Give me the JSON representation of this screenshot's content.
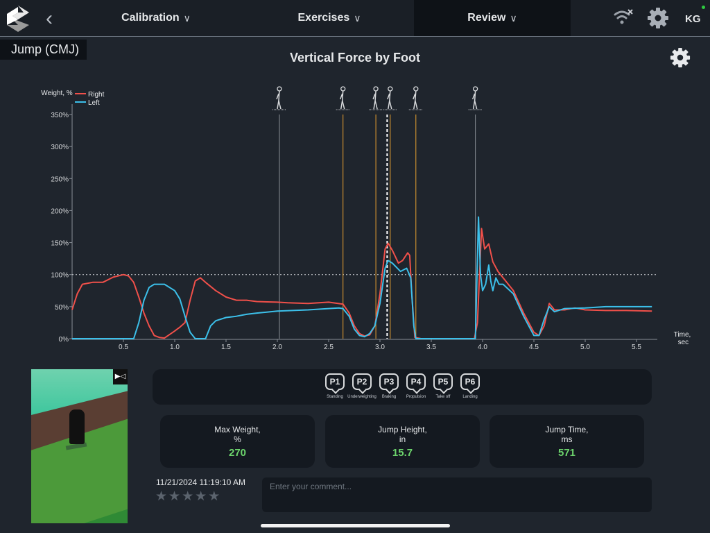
{
  "header": {
    "tabs": [
      {
        "label": "Calibration"
      },
      {
        "label": "Exercises"
      },
      {
        "label": "Review",
        "active": true
      }
    ],
    "user_initials": "KG",
    "icons": [
      "logo",
      "back-chevron",
      "wifi-off-icon",
      "settings-gear-icon"
    ]
  },
  "exercise_label": "Jump (CMJ)",
  "chart_title": "Vertical Force by Foot",
  "chart_data": {
    "type": "line",
    "title": "Vertical Force by Foot",
    "ylabel": "Weight, %",
    "xlabel": "Time, sec",
    "ylim": [
      0,
      350
    ],
    "xlim": [
      0,
      5.7
    ],
    "yticks": [
      "0%",
      "50%",
      "100%",
      "150%",
      "200%",
      "250%",
      "300%",
      "350%"
    ],
    "xticks": [
      "0.5",
      "1.0",
      "1.5",
      "2.0",
      "2.5",
      "3.0",
      "3.5",
      "4.0",
      "4.5",
      "5.0",
      "5.5"
    ],
    "reference_line": 100,
    "legend_placement": "top-left",
    "series": [
      {
        "name": "Right",
        "color": "#f0504a",
        "points": [
          [
            0,
            45
          ],
          [
            0.05,
            70
          ],
          [
            0.1,
            85
          ],
          [
            0.2,
            88
          ],
          [
            0.3,
            88
          ],
          [
            0.4,
            96
          ],
          [
            0.5,
            100
          ],
          [
            0.55,
            98
          ],
          [
            0.6,
            88
          ],
          [
            0.65,
            65
          ],
          [
            0.7,
            40
          ],
          [
            0.75,
            20
          ],
          [
            0.8,
            5
          ],
          [
            0.85,
            2
          ],
          [
            0.9,
            1
          ],
          [
            1.0,
            12
          ],
          [
            1.05,
            18
          ],
          [
            1.1,
            25
          ],
          [
            1.15,
            60
          ],
          [
            1.2,
            90
          ],
          [
            1.25,
            95
          ],
          [
            1.3,
            88
          ],
          [
            1.4,
            75
          ],
          [
            1.5,
            65
          ],
          [
            1.6,
            60
          ],
          [
            1.7,
            60
          ],
          [
            1.8,
            58
          ],
          [
            2.0,
            57
          ],
          [
            2.1,
            56
          ],
          [
            2.3,
            55
          ],
          [
            2.5,
            57
          ],
          [
            2.64,
            54
          ],
          [
            2.7,
            40
          ],
          [
            2.75,
            20
          ],
          [
            2.8,
            8
          ],
          [
            2.85,
            4
          ],
          [
            2.9,
            6
          ],
          [
            2.95,
            20
          ],
          [
            3.0,
            70
          ],
          [
            3.05,
            140
          ],
          [
            3.08,
            149
          ],
          [
            3.12,
            138
          ],
          [
            3.18,
            118
          ],
          [
            3.22,
            122
          ],
          [
            3.27,
            134
          ],
          [
            3.29,
            130
          ],
          [
            3.31,
            70
          ],
          [
            3.34,
            2
          ],
          [
            3.4,
            0
          ],
          [
            3.92,
            0
          ],
          [
            3.95,
            25
          ],
          [
            3.97,
            100
          ],
          [
            3.99,
            172
          ],
          [
            4.02,
            140
          ],
          [
            4.06,
            148
          ],
          [
            4.1,
            120
          ],
          [
            4.15,
            105
          ],
          [
            4.2,
            95
          ],
          [
            4.3,
            75
          ],
          [
            4.4,
            40
          ],
          [
            4.5,
            10
          ],
          [
            4.55,
            5
          ],
          [
            4.6,
            20
          ],
          [
            4.65,
            55
          ],
          [
            4.7,
            45
          ],
          [
            4.8,
            45
          ],
          [
            4.9,
            48
          ],
          [
            5.0,
            45
          ],
          [
            5.2,
            44
          ],
          [
            5.4,
            44
          ],
          [
            5.65,
            43
          ]
        ]
      },
      {
        "name": "Left",
        "color": "#3cc0ea",
        "points": [
          [
            0,
            0
          ],
          [
            0.6,
            0
          ],
          [
            0.65,
            25
          ],
          [
            0.7,
            60
          ],
          [
            0.75,
            80
          ],
          [
            0.8,
            85
          ],
          [
            0.9,
            85
          ],
          [
            1.0,
            75
          ],
          [
            1.05,
            62
          ],
          [
            1.1,
            35
          ],
          [
            1.15,
            10
          ],
          [
            1.2,
            0
          ],
          [
            1.3,
            0
          ],
          [
            1.35,
            20
          ],
          [
            1.4,
            28
          ],
          [
            1.5,
            33
          ],
          [
            1.6,
            35
          ],
          [
            1.7,
            38
          ],
          [
            1.8,
            40
          ],
          [
            2.0,
            43
          ],
          [
            2.3,
            45
          ],
          [
            2.5,
            47
          ],
          [
            2.6,
            48
          ],
          [
            2.64,
            47
          ],
          [
            2.7,
            35
          ],
          [
            2.75,
            15
          ],
          [
            2.8,
            5
          ],
          [
            2.85,
            3
          ],
          [
            2.9,
            8
          ],
          [
            2.95,
            20
          ],
          [
            3.0,
            55
          ],
          [
            3.05,
            110
          ],
          [
            3.08,
            122
          ],
          [
            3.12,
            118
          ],
          [
            3.2,
            105
          ],
          [
            3.26,
            110
          ],
          [
            3.3,
            95
          ],
          [
            3.33,
            20
          ],
          [
            3.35,
            0
          ],
          [
            3.93,
            0
          ],
          [
            3.96,
            190
          ],
          [
            3.98,
            100
          ],
          [
            4.0,
            75
          ],
          [
            4.03,
            85
          ],
          [
            4.06,
            115
          ],
          [
            4.08,
            90
          ],
          [
            4.1,
            75
          ],
          [
            4.13,
            95
          ],
          [
            4.16,
            85
          ],
          [
            4.2,
            85
          ],
          [
            4.3,
            70
          ],
          [
            4.4,
            35
          ],
          [
            4.5,
            5
          ],
          [
            4.55,
            5
          ],
          [
            4.6,
            30
          ],
          [
            4.65,
            50
          ],
          [
            4.7,
            42
          ],
          [
            4.8,
            47
          ],
          [
            5.0,
            48
          ],
          [
            5.2,
            50
          ],
          [
            5.4,
            50
          ],
          [
            5.65,
            50
          ]
        ]
      }
    ],
    "event_markers": [
      {
        "t": 2.02,
        "color": "#8a8f96",
        "icon": "standing"
      },
      {
        "t": 2.64,
        "color": "#e8a030",
        "icon": "underweighting"
      },
      {
        "t": 2.96,
        "color": "#e8a030",
        "icon": "braking"
      },
      {
        "t": 3.1,
        "color": "#e8a030",
        "icon": "propulsion"
      },
      {
        "t": 3.35,
        "color": "#e8a030",
        "icon": "take-off"
      },
      {
        "t": 3.93,
        "color": "#8a8f96",
        "icon": "landing"
      }
    ],
    "cursor_t": 3.07
  },
  "phases": [
    {
      "id": "P1",
      "label": "Standing"
    },
    {
      "id": "P2",
      "label": "Underweighting"
    },
    {
      "id": "P3",
      "label": "Braking"
    },
    {
      "id": "P4",
      "label": "Propulsion"
    },
    {
      "id": "P5",
      "label": "Take off"
    },
    {
      "id": "P6",
      "label": "Landing"
    }
  ],
  "metrics": [
    {
      "label": "Max Weight,",
      "unit": "%",
      "value": "270"
    },
    {
      "label": "Jump Height,",
      "unit": "in",
      "value": "15.7"
    },
    {
      "label": "Jump Time,",
      "unit": "ms",
      "value": "571"
    }
  ],
  "timestamp": "11/21/2024 11:19:10 AM",
  "rating": {
    "value": 0,
    "max": 5
  },
  "comment": {
    "placeholder": "Enter your comment...",
    "value": ""
  },
  "accent_green": "#6cd46c"
}
